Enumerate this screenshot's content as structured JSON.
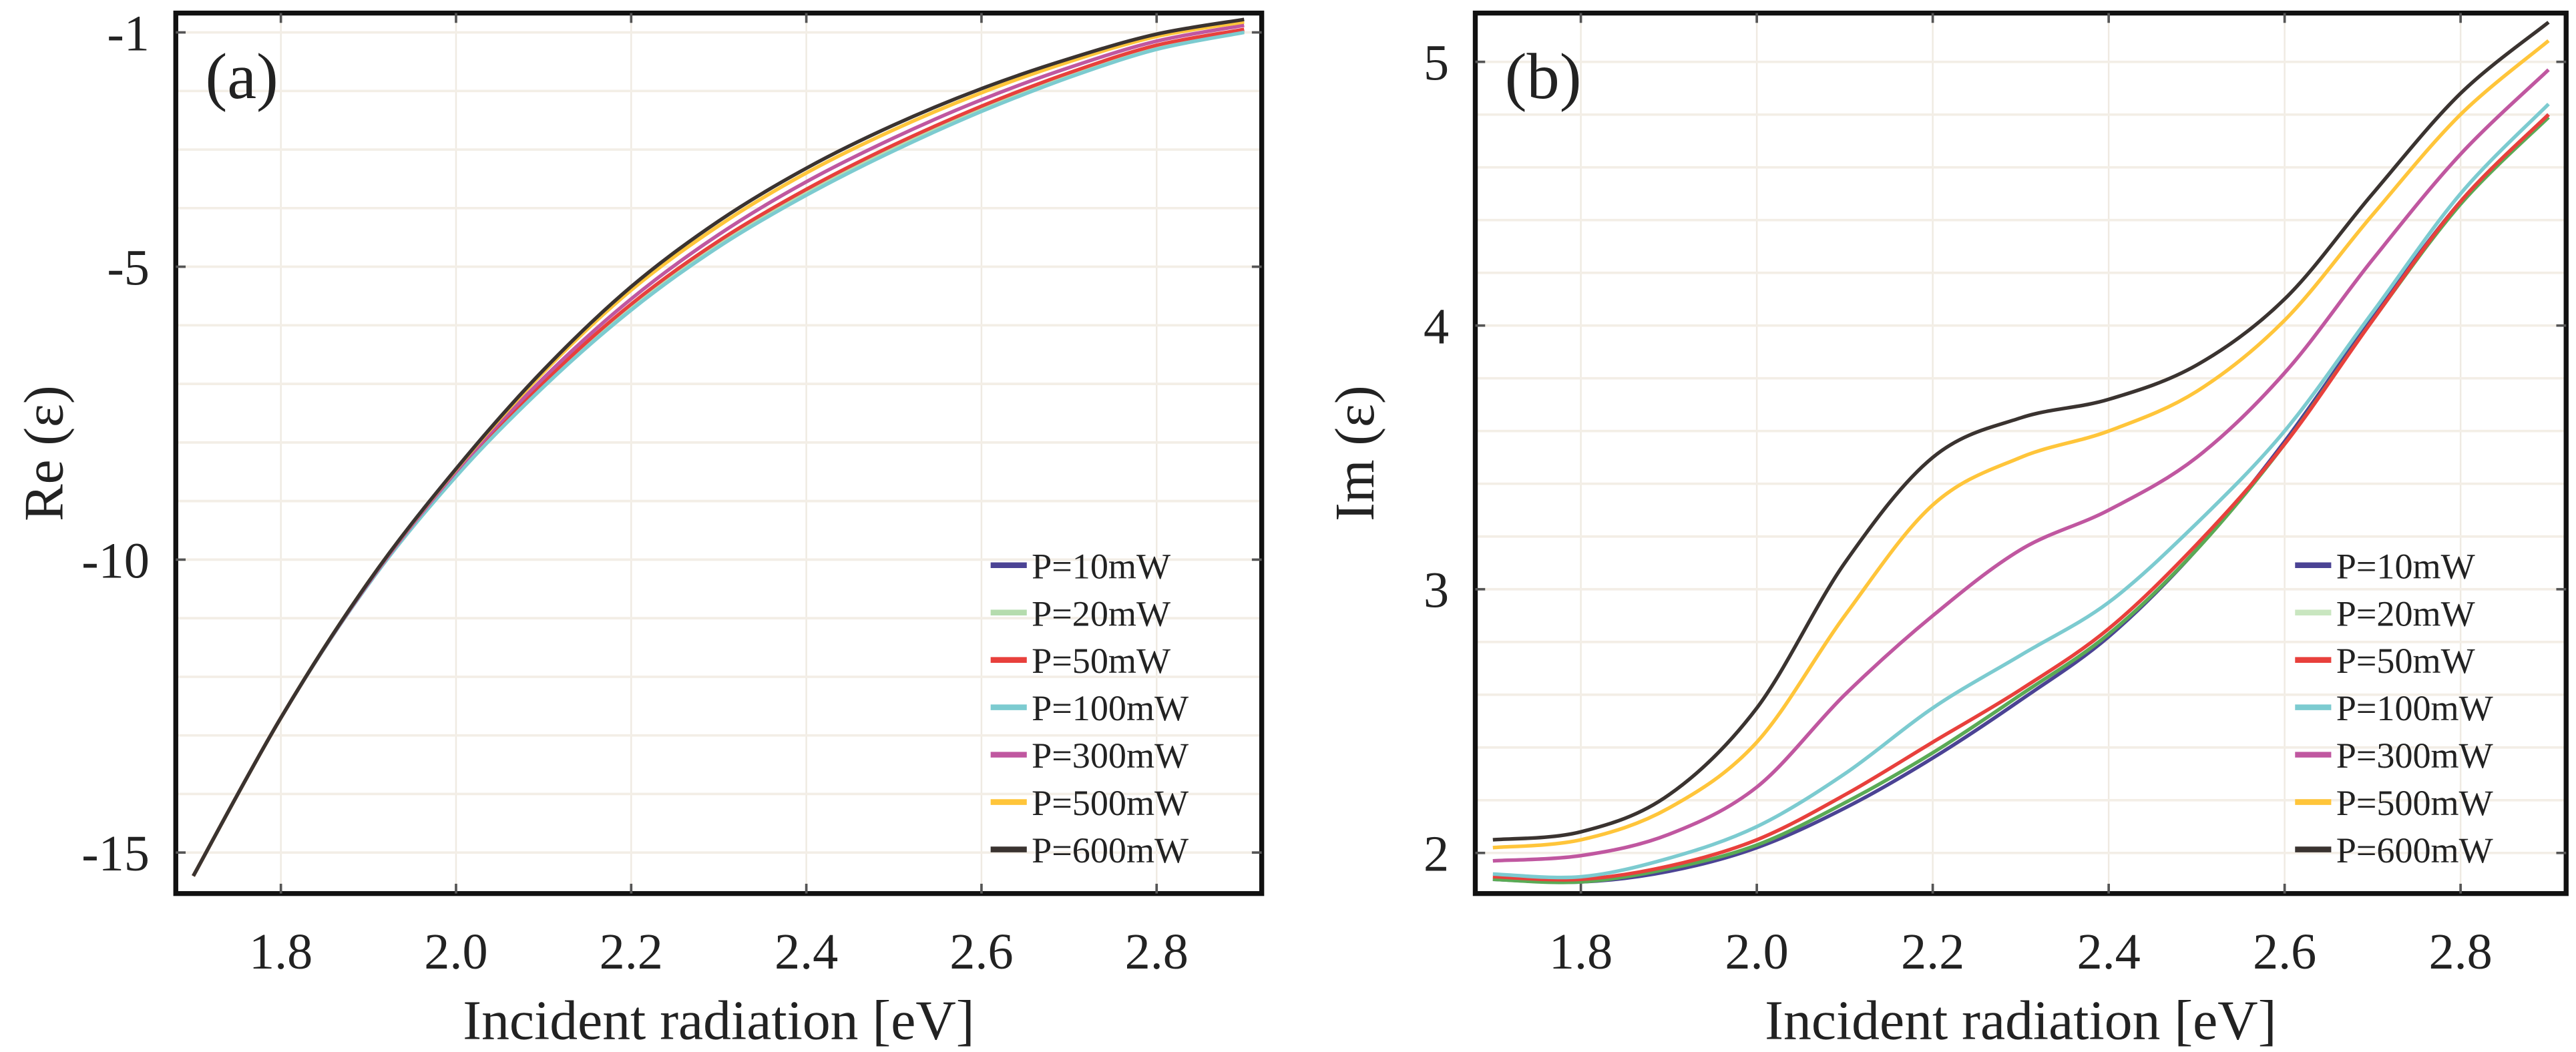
{
  "chart_data": [
    {
      "type": "line",
      "panel_label": "(a)",
      "xlabel": "Incident radiation [eV]",
      "ylabel": "Re (ε)",
      "xlim": [
        1.68,
        2.92
      ],
      "ylim": [
        -15.7,
        -0.67
      ],
      "xticks": [
        1.8,
        2.0,
        2.2,
        2.4,
        2.6,
        2.8
      ],
      "xtick_labels": [
        "1.8",
        "2.0",
        "2.2",
        "2.4",
        "2.6",
        "2.8"
      ],
      "yticks": [
        -1,
        -5,
        -10,
        -15
      ],
      "ytick_labels": [
        "-1",
        "-5",
        "-10",
        "-15"
      ],
      "grid": true,
      "legend_position": "bottom-right",
      "x": [
        1.7,
        1.8,
        1.9,
        2.0,
        2.1,
        2.2,
        2.3,
        2.4,
        2.5,
        2.6,
        2.7,
        2.8,
        2.9
      ],
      "series": [
        {
          "name": "P=10mW",
          "color": "#4b4394",
          "values": [
            -15.4,
            -12.7,
            -10.4,
            -8.55,
            -7.0,
            -5.68,
            -4.6,
            -3.72,
            -2.96,
            -2.3,
            -1.72,
            -1.25,
            -0.97
          ]
        },
        {
          "name": "P=20mW",
          "color": "#b5dcae",
          "values": [
            -15.4,
            -12.7,
            -10.4,
            -8.55,
            -7.0,
            -5.68,
            -4.6,
            -3.72,
            -2.96,
            -2.3,
            -1.73,
            -1.26,
            -0.98
          ]
        },
        {
          "name": "P=50mW",
          "color": "#e8403c",
          "values": [
            -15.4,
            -12.7,
            -10.4,
            -8.53,
            -6.97,
            -5.64,
            -4.56,
            -3.68,
            -2.92,
            -2.26,
            -1.69,
            -1.22,
            -0.95
          ]
        },
        {
          "name": "P=100mW",
          "color": "#7ccbd0",
          "values": [
            -15.4,
            -12.7,
            -10.42,
            -8.58,
            -7.05,
            -5.74,
            -4.66,
            -3.78,
            -3.02,
            -2.35,
            -1.77,
            -1.29,
            -1.0
          ]
        },
        {
          "name": "P=300mW",
          "color": "#c057a0",
          "values": [
            -15.4,
            -12.7,
            -10.4,
            -8.5,
            -6.9,
            -5.55,
            -4.45,
            -3.55,
            -2.8,
            -2.15,
            -1.6,
            -1.15,
            -0.88
          ]
        },
        {
          "name": "P=500mW",
          "color": "#ffc53a",
          "values": [
            -15.4,
            -12.7,
            -10.38,
            -8.46,
            -6.8,
            -5.4,
            -4.3,
            -3.4,
            -2.66,
            -2.03,
            -1.5,
            -1.07,
            -0.82
          ]
        },
        {
          "name": "P=600mW",
          "color": "#3a3330",
          "values": [
            -15.4,
            -12.7,
            -10.38,
            -8.45,
            -6.76,
            -5.34,
            -4.22,
            -3.32,
            -2.58,
            -1.96,
            -1.45,
            -1.03,
            -0.78
          ]
        }
      ]
    },
    {
      "type": "line",
      "panel_label": "(b)",
      "xlabel": "Incident radiation [eV]",
      "ylabel": "Im (ε)",
      "xlim": [
        1.68,
        2.92
      ],
      "ylim": [
        1.846,
        5.185
      ],
      "xticks": [
        1.8,
        2.0,
        2.2,
        2.4,
        2.6,
        2.8
      ],
      "xtick_labels": [
        "1.8",
        "2.0",
        "2.2",
        "2.4",
        "2.6",
        "2.8"
      ],
      "yticks": [
        2,
        3,
        4,
        5
      ],
      "ytick_labels": [
        "2",
        "3",
        "4",
        "5"
      ],
      "grid": true,
      "legend_position": "bottom-right",
      "x": [
        1.7,
        1.8,
        1.9,
        2.0,
        2.1,
        2.2,
        2.3,
        2.4,
        2.5,
        2.6,
        2.7,
        2.8,
        2.9
      ],
      "series": [
        {
          "name": "P=10mW",
          "color": "#4b4394",
          "values": [
            1.9,
            1.89,
            1.93,
            2.02,
            2.17,
            2.36,
            2.58,
            2.82,
            3.15,
            3.56,
            4.03,
            4.47,
            4.8
          ]
        },
        {
          "name": "P=20mW",
          "color": "#5aaa55",
          "values": [
            1.9,
            1.89,
            1.94,
            2.03,
            2.19,
            2.38,
            2.6,
            2.83,
            3.15,
            3.55,
            4.02,
            4.46,
            4.79
          ]
        },
        {
          "name": "P=50mW",
          "color": "#e8403c",
          "values": [
            1.91,
            1.9,
            1.95,
            2.05,
            2.22,
            2.42,
            2.62,
            2.85,
            3.17,
            3.55,
            4.02,
            4.47,
            4.8
          ]
        },
        {
          "name": "P=100mW",
          "color": "#7ccbd0",
          "values": [
            1.92,
            1.91,
            1.98,
            2.1,
            2.3,
            2.55,
            2.75,
            2.95,
            3.25,
            3.6,
            4.05,
            4.5,
            4.84
          ]
        },
        {
          "name": "P=300mW",
          "color": "#c057a0",
          "values": [
            1.97,
            1.99,
            2.07,
            2.25,
            2.6,
            2.9,
            3.15,
            3.3,
            3.5,
            3.82,
            4.25,
            4.65,
            4.97
          ]
        },
        {
          "name": "P=500mW",
          "color": "#ffc53a",
          "values": [
            2.02,
            2.05,
            2.17,
            2.42,
            2.9,
            3.32,
            3.5,
            3.6,
            3.75,
            4.02,
            4.42,
            4.8,
            5.08
          ]
        },
        {
          "name": "P=600mW",
          "color": "#3a3330",
          "values": [
            2.05,
            2.08,
            2.22,
            2.55,
            3.1,
            3.5,
            3.65,
            3.72,
            3.85,
            4.1,
            4.5,
            4.88,
            5.15
          ]
        }
      ],
      "legend_colors": [
        "#4b4394",
        "#c9e6c0",
        "#e8403c",
        "#7ccbd0",
        "#c057a0",
        "#ffc53a",
        "#3a3330"
      ]
    }
  ]
}
